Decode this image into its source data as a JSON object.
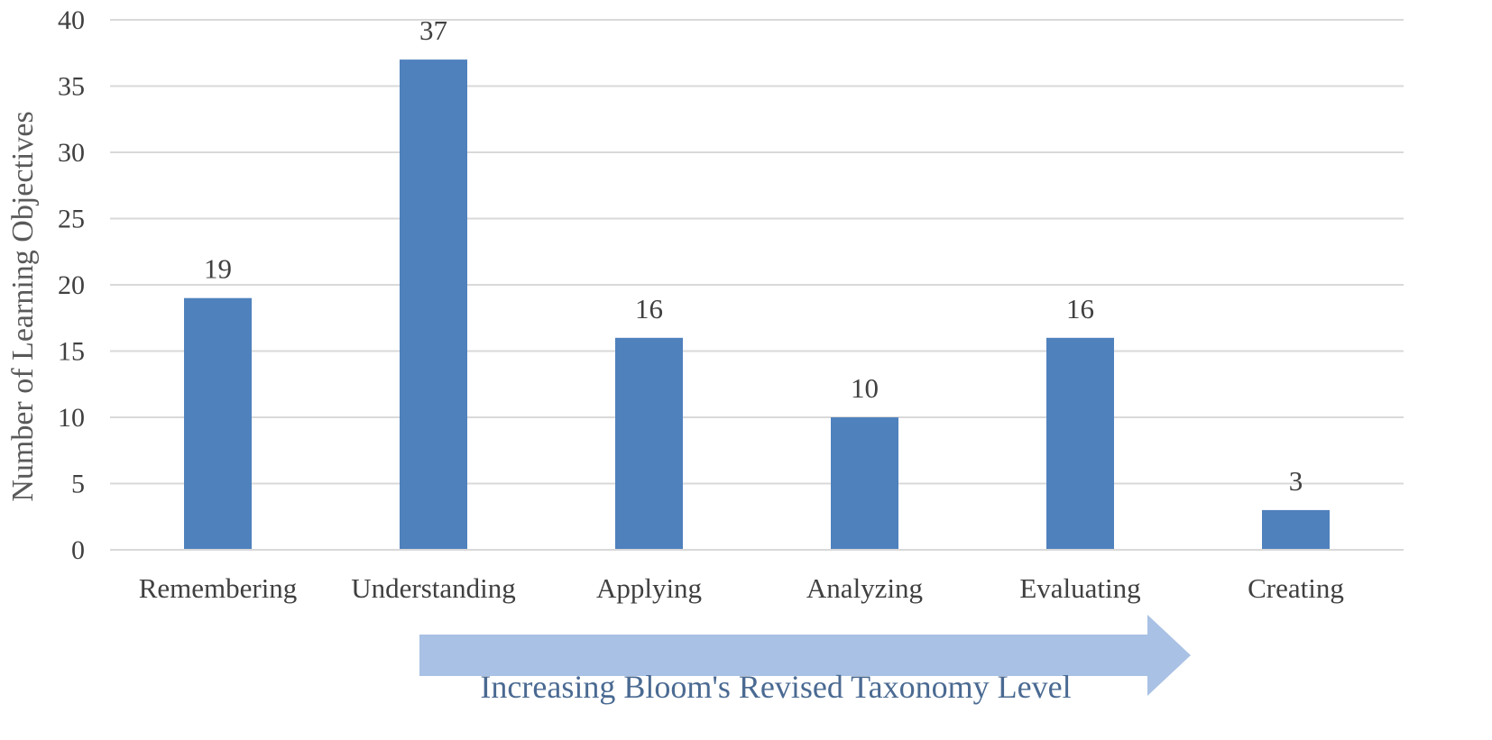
{
  "chart_data": {
    "type": "bar",
    "categories": [
      "Remembering",
      "Understanding",
      "Applying",
      "Analyzing",
      "Evaluating",
      "Creating"
    ],
    "values": [
      19,
      37,
      16,
      10,
      16,
      3
    ],
    "data_labels": [
      "19",
      "37",
      "16",
      "10",
      "16",
      "3"
    ],
    "title": "",
    "xlabel": "",
    "ylabel": "Number of Learning Objectives",
    "ylim": [
      0,
      40
    ],
    "yticks": [
      0,
      5,
      10,
      15,
      20,
      25,
      30,
      35,
      40
    ],
    "grid": true,
    "legend": "none",
    "bar_color": "#4f81bd",
    "annotation": {
      "text": "Increasing Bloom's Revised Taxonomy Level",
      "shape": "right-arrow",
      "color": "#a9c1e4"
    }
  }
}
